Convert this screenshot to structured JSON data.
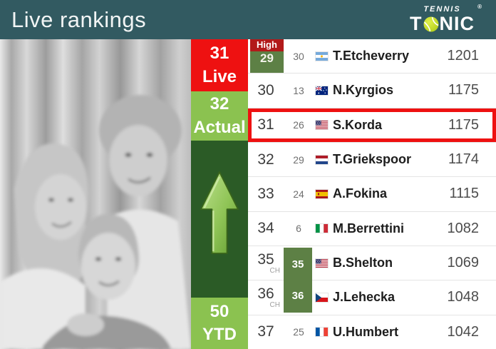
{
  "header": {
    "title": "Live rankings",
    "logo": {
      "top": "TENNIS",
      "bottom_t": "T",
      "bottom_nic": "NIC",
      "registered": "®",
      "ball_icon": "tennis-ball-icon"
    }
  },
  "summary": {
    "live": {
      "value": "31",
      "label": "Live"
    },
    "actual": {
      "value": "32",
      "label": "Actual"
    },
    "ytd": {
      "value": "50",
      "label": "YTD"
    },
    "trend_icon": "arrow-up-icon"
  },
  "table": {
    "rows": [
      {
        "rank": "29",
        "career_high": "30",
        "career_high_header": "High",
        "rank_in_green_box": true,
        "country": "argentina",
        "name": "T.Etcheverry",
        "points": "1201"
      },
      {
        "rank": "30",
        "career_high": "13",
        "country": "australia",
        "name": "N.Kyrgios",
        "points": "1175"
      },
      {
        "rank": "31",
        "career_high": "26",
        "country": "usa",
        "name": "S.Korda",
        "points": "1175",
        "selected": true
      },
      {
        "rank": "32",
        "career_high": "29",
        "country": "netherlands",
        "name": "T.Griekspoor",
        "points": "1174"
      },
      {
        "rank": "33",
        "career_high": "24",
        "country": "spain",
        "name": "A.Fokina",
        "points": "1115"
      },
      {
        "rank": "34",
        "career_high": "6",
        "country": "italy",
        "name": "M.Berrettini",
        "points": "1082"
      },
      {
        "rank": "35",
        "ch_label": "CH",
        "career_high": "35",
        "career_high_in_green_box": true,
        "country": "usa",
        "name": "B.Shelton",
        "points": "1069"
      },
      {
        "rank": "36",
        "ch_label": "CH",
        "career_high": "36",
        "career_high_in_green_box": true,
        "country": "czechia",
        "name": "J.Lehecka",
        "points": "1048"
      },
      {
        "rank": "37",
        "career_high": "25",
        "country": "france",
        "name": "U.Humbert",
        "points": "1042"
      }
    ]
  },
  "colors": {
    "header_teal": "#325a61",
    "accent_red": "#ee1111",
    "high_red": "#b21a1a",
    "light_green": "#8bc250",
    "olive_green": "#5d8045",
    "dark_green": "#2b5b26",
    "arrow_green": "#8fc456"
  }
}
